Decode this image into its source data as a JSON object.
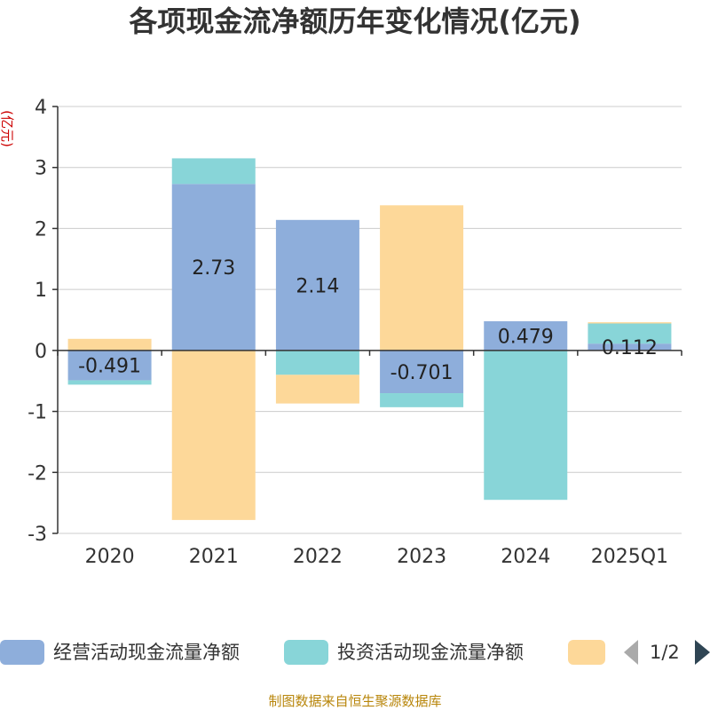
{
  "page": {
    "title": "各项现金流净额历年变化情况(亿元)",
    "footer": "制图数据来自恒生聚源数据库"
  },
  "legend": {
    "page_indicator": "1/2"
  },
  "chart_data": {
    "type": "bar",
    "stacked": true,
    "title": "各项现金流净额历年变化情况(亿元)",
    "ylabel": "(亿元)",
    "xlabel": "",
    "ylim": [
      -3,
      4
    ],
    "yticks": [
      -3,
      -2,
      -1,
      0,
      1,
      2,
      3,
      4
    ],
    "grid": true,
    "legend_position": "bottom",
    "categories": [
      "2020",
      "2021",
      "2022",
      "2023",
      "2024",
      "2025Q1"
    ],
    "series": [
      {
        "name": "经营活动现金流量净额",
        "color": "#8eaedb",
        "values": [
          -0.491,
          2.73,
          2.14,
          -0.701,
          0.479,
          0.112
        ],
        "labels": [
          "-0.491",
          "2.73",
          "2.14",
          "-0.701",
          "0.479",
          "0.112"
        ]
      },
      {
        "name": "投资活动现金流量净额",
        "color": "#88d5d8",
        "values": [
          -0.07,
          0.42,
          -0.4,
          -0.23,
          -2.45,
          0.33
        ]
      },
      {
        "name": "",
        "color": "#fdd899",
        "values": [
          0.19,
          -2.78,
          -0.47,
          2.38,
          0.0,
          0.02
        ]
      }
    ]
  }
}
